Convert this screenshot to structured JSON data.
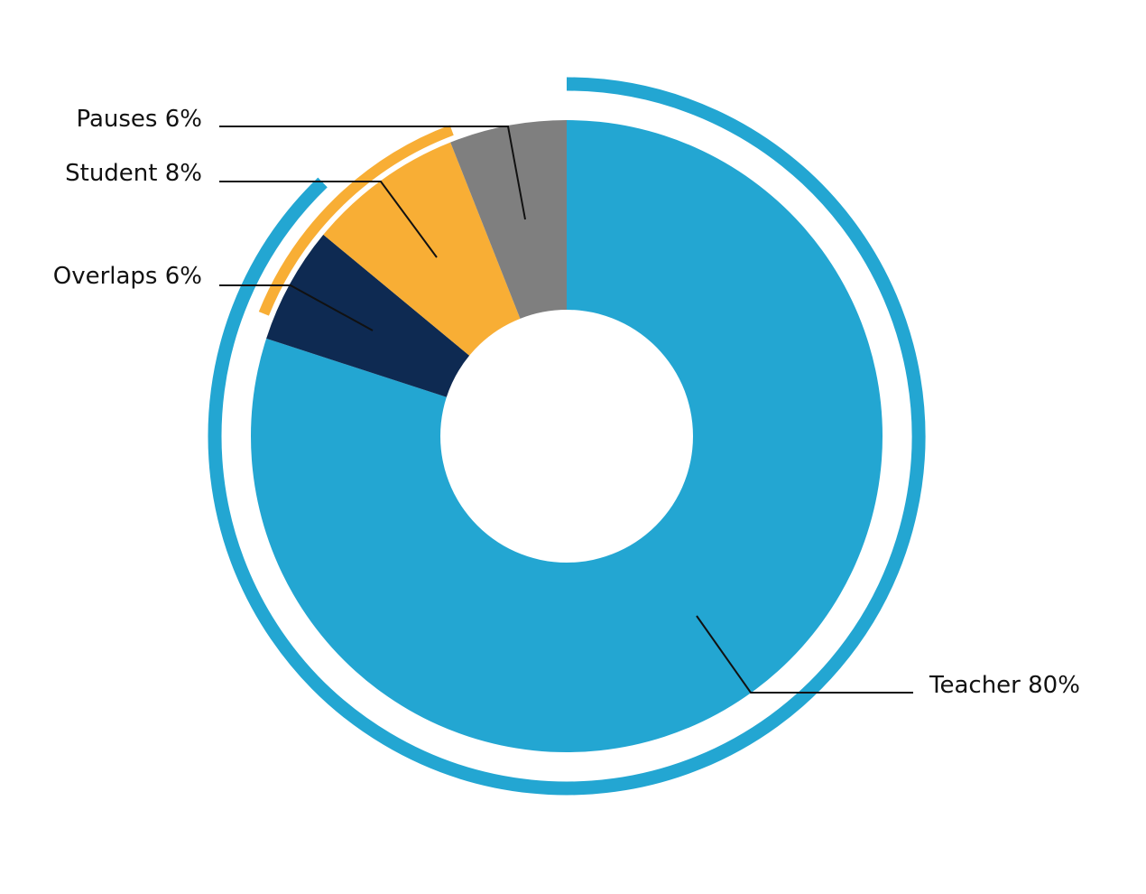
{
  "chart_data": {
    "type": "pie",
    "variant": "donut",
    "slices": [
      {
        "name": "Teacher",
        "value": 80,
        "label": "Teacher 80%",
        "color": "#23A6D2"
      },
      {
        "name": "Overlaps",
        "value": 6,
        "label": "Overlaps 6%",
        "color": "#0E2A52"
      },
      {
        "name": "Student",
        "value": 8,
        "label": "Student 8%",
        "color": "#F8AE35"
      },
      {
        "name": "Pauses",
        "value": 6,
        "label": "Pauses 6%",
        "color": "#7F7F7F"
      }
    ],
    "outer_arcs": [
      {
        "name": "Teacher and overlaps",
        "covers": [
          "Teacher",
          "Overlaps"
        ],
        "color": "#23A6D2"
      },
      {
        "name": "Student and overlaps",
        "covers": [
          "Overlaps",
          "Student"
        ],
        "color": "#F8AE35"
      }
    ],
    "start_angle": "12 o'clock",
    "direction": "clockwise",
    "legend": "none"
  }
}
